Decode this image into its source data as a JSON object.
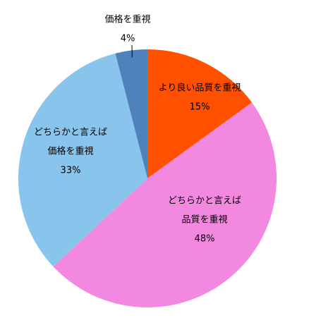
{
  "chart_data": {
    "type": "pie",
    "categories": [
      [
        "より良い品質を重視"
      ],
      [
        "どちらかと言えば",
        "品質を重視"
      ],
      [
        "どちらかと言えば",
        "価格を重視"
      ],
      [
        "価格を重視"
      ]
    ],
    "values": [
      15,
      48,
      33,
      4
    ],
    "value_labels": [
      "15%",
      "48%",
      "33%",
      "4%"
    ],
    "colors": [
      "#ff5000",
      "#f288e0",
      "#88c4ec",
      "#4f81bd"
    ]
  }
}
